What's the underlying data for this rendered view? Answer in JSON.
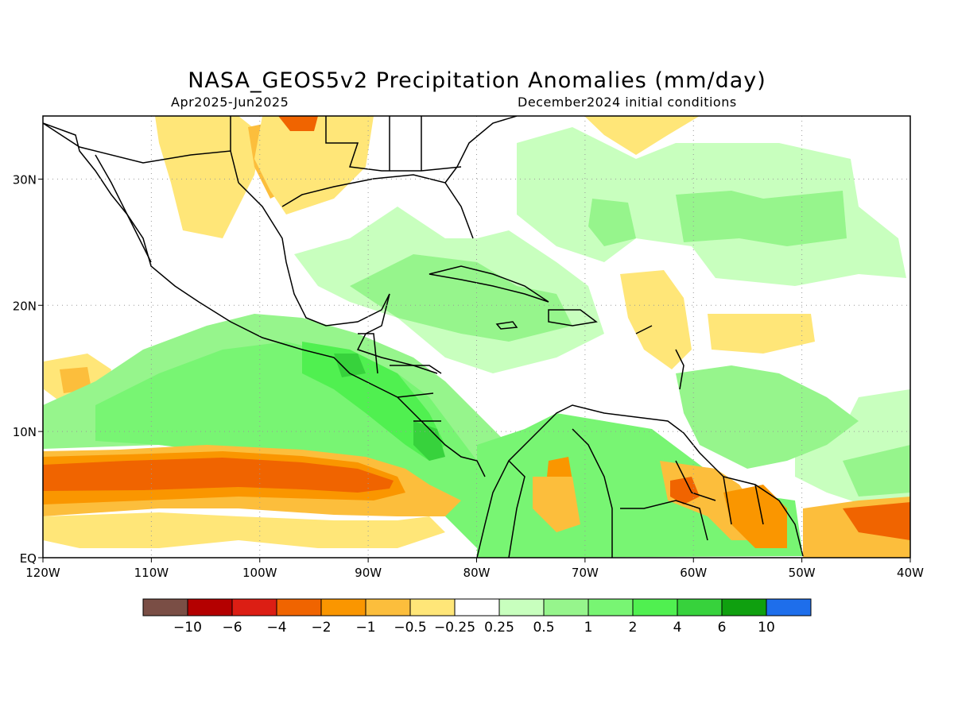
{
  "title": "NASA_GEOS5v2 Precipitation Anomalies (mm/day)",
  "period": "Apr2025-Jun2025",
  "initial_conditions": "December2024 initial conditions",
  "map": {
    "lon_range": [
      -120,
      -40
    ],
    "lat_range": [
      0,
      35
    ],
    "lat_ticks": [
      {
        "value": 30,
        "label": "30N"
      },
      {
        "value": 20,
        "label": "20N"
      },
      {
        "value": 10,
        "label": "10N"
      },
      {
        "value": 0,
        "label": "EQ"
      }
    ],
    "lon_ticks": [
      {
        "value": -120,
        "label": "120W"
      },
      {
        "value": -110,
        "label": "110W"
      },
      {
        "value": -100,
        "label": "100W"
      },
      {
        "value": -90,
        "label": "90W"
      },
      {
        "value": -80,
        "label": "80W"
      },
      {
        "value": -70,
        "label": "70W"
      },
      {
        "value": -60,
        "label": "60W"
      },
      {
        "value": -50,
        "label": "50W"
      },
      {
        "value": -40,
        "label": "40W"
      }
    ],
    "grid": true
  },
  "legend": {
    "colors": [
      "#7a4e45",
      "#b40000",
      "#dc1e14",
      "#f06400",
      "#fa9600",
      "#fcbe3c",
      "#ffe678",
      "#ffffff",
      "#c8ffbe",
      "#96f58c",
      "#78f573",
      "#50f050",
      "#37d23c",
      "#0fa00f",
      "#1e6eeb"
    ],
    "labels": [
      "−10",
      "−6",
      "−4",
      "−2",
      "−1",
      "−0.5",
      "−0.25",
      "0.25",
      "0.5",
      "1",
      "2",
      "4",
      "6",
      "10"
    ]
  },
  "colors": {
    "land_outline": "#000000",
    "grid": "#999999"
  }
}
